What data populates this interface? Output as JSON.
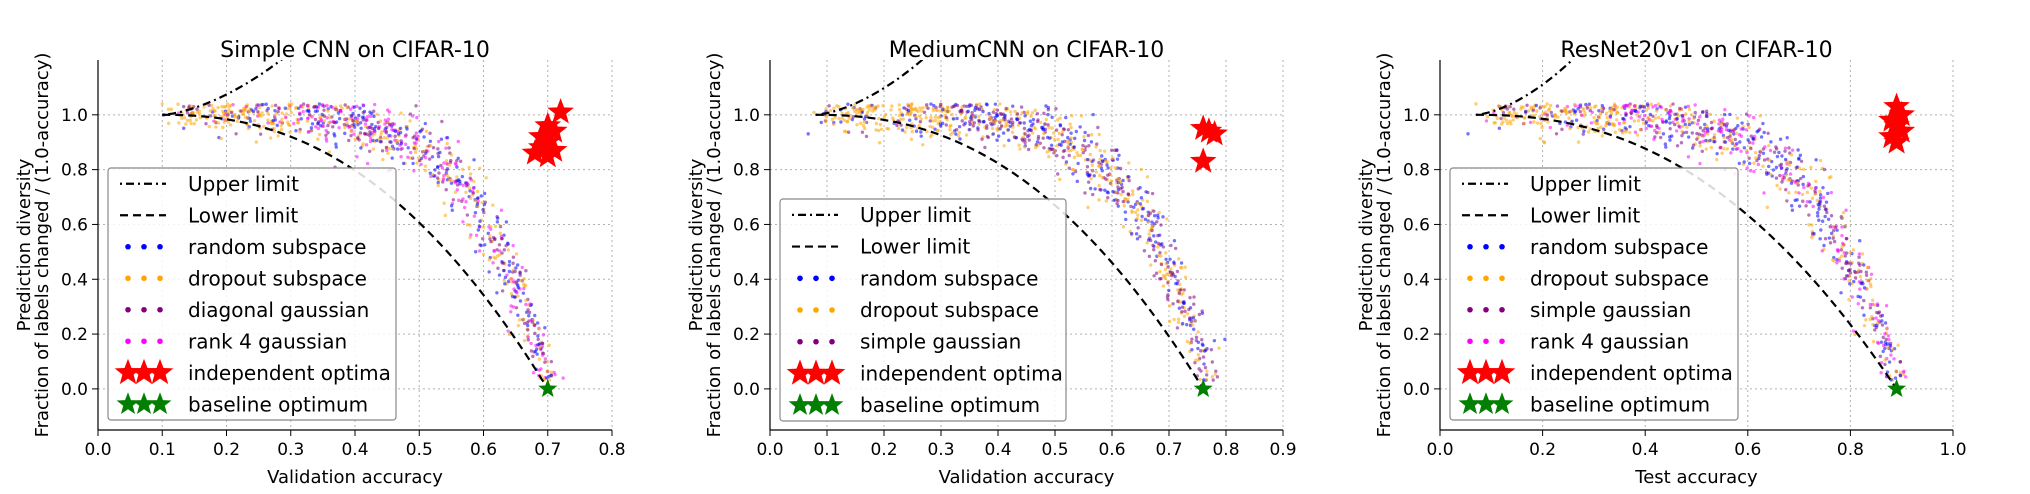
{
  "chart_data": [
    {
      "type": "scatter",
      "title": "Simple CNN on CIFAR-10",
      "xlabel": "Validation accuracy",
      "ylabel": "Prediction diversity",
      "ylabel2": "Fraction of labels changed / (1.0-accuracy)",
      "xlim": [
        0.0,
        0.8
      ],
      "ylim": [
        -0.15,
        1.2
      ],
      "xticks": [
        "0.0",
        "0.1",
        "0.2",
        "0.3",
        "0.4",
        "0.5",
        "0.6",
        "0.7",
        "0.8"
      ],
      "yticks": [
        "0.0",
        "0.2",
        "0.4",
        "0.6",
        "0.8",
        "1.0"
      ],
      "grid": true,
      "legend_position": "lower-left",
      "lower_limit_accuracy": 0.7,
      "cloud": {
        "start_x": 0.1,
        "end_x": 0.7
      },
      "legend": [
        "Upper limit",
        "Lower limit",
        "random subspace",
        "dropout subspace",
        "diagonal gaussian",
        "rank 4 gaussian",
        "independent optima",
        "baseline optimum"
      ],
      "independent_optima": [
        [
          0.72,
          1.01
        ],
        [
          0.7,
          0.96
        ],
        [
          0.71,
          0.94
        ],
        [
          0.69,
          0.92
        ],
        [
          0.7,
          0.9
        ],
        [
          0.69,
          0.88
        ],
        [
          0.71,
          0.87
        ],
        [
          0.68,
          0.86
        ],
        [
          0.7,
          0.85
        ]
      ],
      "baseline_optimum": [
        [
          0.7,
          0.0
        ]
      ]
    },
    {
      "type": "scatter",
      "title": "MediumCNN on CIFAR-10",
      "xlabel": "Validation accuracy",
      "ylabel": "Prediction diversity",
      "ylabel2": "Fraction of labels changed / (1.0-accuracy)",
      "xlim": [
        0.0,
        0.9
      ],
      "ylim": [
        -0.15,
        1.2
      ],
      "xticks": [
        "0.0",
        "0.1",
        "0.2",
        "0.3",
        "0.4",
        "0.5",
        "0.6",
        "0.7",
        "0.8",
        "0.9"
      ],
      "yticks": [
        "0.0",
        "0.2",
        "0.4",
        "0.6",
        "0.8",
        "1.0"
      ],
      "grid": true,
      "legend_position": "lower-left",
      "lower_limit_accuracy": 0.76,
      "cloud": {
        "start_x": 0.08,
        "end_x": 0.77
      },
      "legend": [
        "Upper limit",
        "Lower limit",
        "random subspace",
        "dropout subspace",
        "simple gaussian",
        "independent optima",
        "baseline optimum"
      ],
      "independent_optima": [
        [
          0.76,
          0.95
        ],
        [
          0.77,
          0.94
        ],
        [
          0.78,
          0.93
        ],
        [
          0.76,
          0.83
        ]
      ],
      "baseline_optimum": [
        [
          0.76,
          0.0
        ]
      ]
    },
    {
      "type": "scatter",
      "title": "ResNet20v1 on CIFAR-10",
      "xlabel": "Test accuracy",
      "ylabel": "Prediction diversity",
      "ylabel2": "Fraction of labels changed / (1.0-accuracy)",
      "xlim": [
        0.0,
        1.0
      ],
      "ylim": [
        -0.15,
        1.2
      ],
      "xticks": [
        "0.0",
        "0.2",
        "0.4",
        "0.6",
        "0.8",
        "1.0"
      ],
      "yticks": [
        "0.0",
        "0.2",
        "0.4",
        "0.6",
        "0.8",
        "1.0"
      ],
      "grid": true,
      "legend_position": "lower-left",
      "lower_limit_accuracy": 0.89,
      "cloud": {
        "start_x": 0.07,
        "end_x": 0.89
      },
      "legend": [
        "Upper limit",
        "Lower limit",
        "random subspace",
        "dropout subspace",
        "simple gaussian",
        "rank 4 gaussian",
        "independent optima",
        "baseline optimum"
      ],
      "independent_optima": [
        [
          0.89,
          1.03
        ],
        [
          0.9,
          1.0
        ],
        [
          0.88,
          0.98
        ],
        [
          0.89,
          0.96
        ],
        [
          0.9,
          0.94
        ],
        [
          0.88,
          0.92
        ],
        [
          0.89,
          0.9
        ]
      ],
      "baseline_optimum": [
        [
          0.89,
          0.0
        ]
      ]
    }
  ],
  "colors": {
    "random subspace": "#0000ff",
    "dropout subspace": "#ffa500",
    "diagonal gaussian": "#800080",
    "simple gaussian": "#800080",
    "rank 4 gaussian": "#ff00ff",
    "independent optima": "#ff0000",
    "baseline optimum": "#007f00",
    "lines": "#000000",
    "grid": "#b0b0b0"
  }
}
